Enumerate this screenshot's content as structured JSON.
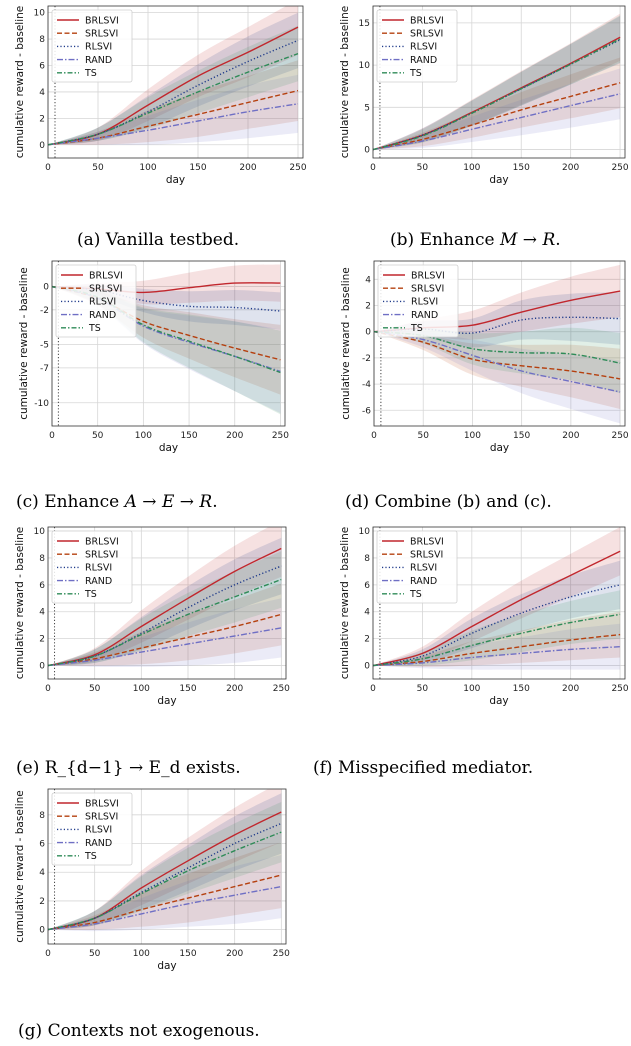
{
  "colors": {
    "BRLSVI": "#c1272d",
    "SRLSVI": "#b5400f",
    "RLSVI": "#1f3a8a",
    "RAND": "#6f6fc4",
    "TS": "#2e8b57"
  },
  "legend_series": [
    "BRLSVI",
    "SRLSVI",
    "RLSVI",
    "RAND",
    "TS"
  ],
  "chart_data": [
    {
      "type": "line",
      "caption": "(a) Vanilla testbed.",
      "xlabel": "day",
      "ylabel": "cumulative reward - baseline",
      "xlim": [
        0,
        255
      ],
      "ylim": [
        -1,
        10.5
      ],
      "xticks": [
        0,
        50,
        100,
        150,
        200,
        250
      ],
      "yticks": [
        0,
        2,
        4,
        6,
        8,
        10
      ],
      "grid": true,
      "legend": "top-left",
      "vline_x": 7,
      "x": [
        0,
        50,
        100,
        150,
        200,
        250
      ],
      "series": [
        {
          "name": "BRLSVI",
          "values": [
            0,
            0.8,
            3.0,
            5.2,
            7.0,
            8.9
          ],
          "band": [
            0,
            0.5,
            1.2,
            1.6,
            1.9,
            2.1
          ]
        },
        {
          "name": "SRLSVI",
          "values": [
            0,
            0.5,
            1.4,
            2.3,
            3.2,
            4.1
          ],
          "band": [
            0,
            0.5,
            1.2,
            1.7,
            2.0,
            2.3
          ]
        },
        {
          "name": "RLSVI",
          "values": [
            0,
            0.8,
            2.5,
            4.5,
            6.3,
            7.9
          ],
          "band": [
            0,
            0.5,
            1.2,
            1.6,
            1.9,
            2.1
          ]
        },
        {
          "name": "RAND",
          "values": [
            0,
            0.5,
            1.1,
            1.8,
            2.5,
            3.1
          ],
          "band": [
            0,
            0.5,
            1.1,
            1.6,
            2.0,
            2.2
          ]
        },
        {
          "name": "TS",
          "values": [
            0,
            0.8,
            2.4,
            4.0,
            5.5,
            6.9
          ],
          "band": [
            0,
            0.5,
            1.2,
            1.6,
            1.9,
            2.1
          ]
        }
      ]
    },
    {
      "type": "line",
      "caption": "(b) Enhance M → R.",
      "xlabel": "day",
      "ylabel": "cumulative reward - baseline",
      "xlim": [
        0,
        255
      ],
      "ylim": [
        -1,
        17
      ],
      "xticks": [
        0,
        50,
        100,
        150,
        200,
        250
      ],
      "yticks": [
        0,
        5,
        10,
        15
      ],
      "grid": true,
      "legend": "top-left",
      "vline_x": 7,
      "x": [
        0,
        50,
        100,
        150,
        200,
        250
      ],
      "series": [
        {
          "name": "BRLSVI",
          "values": [
            0,
            1.7,
            4.4,
            7.3,
            10.2,
            13.3
          ],
          "band": [
            0,
            0.8,
            1.5,
            2.0,
            2.4,
            2.8
          ]
        },
        {
          "name": "SRLSVI",
          "values": [
            0,
            1.2,
            2.9,
            4.7,
            6.3,
            7.9
          ],
          "band": [
            0,
            0.8,
            1.5,
            2.1,
            2.6,
            3.0
          ]
        },
        {
          "name": "RLSVI",
          "values": [
            0,
            1.7,
            4.3,
            7.2,
            10.1,
            13.0
          ],
          "band": [
            0,
            0.8,
            1.5,
            2.0,
            2.4,
            2.8
          ]
        },
        {
          "name": "RAND",
          "values": [
            0,
            1.0,
            2.4,
            3.8,
            5.2,
            6.6
          ],
          "band": [
            0,
            0.8,
            1.5,
            2.1,
            2.6,
            3.0
          ]
        },
        {
          "name": "TS",
          "values": [
            0,
            1.6,
            4.3,
            7.2,
            10.1,
            13.1
          ],
          "band": [
            0,
            0.8,
            1.5,
            2.0,
            2.4,
            2.8
          ]
        }
      ]
    },
    {
      "type": "line",
      "caption": "(c) Enhance A → E → R.",
      "xlabel": "day",
      "ylabel": "cumulative reward - baseline",
      "xlim": [
        0,
        255
      ],
      "ylim": [
        -12,
        2.2
      ],
      "xticks": [
        0,
        50,
        100,
        150,
        200,
        250
      ],
      "yticks": [
        0,
        -2,
        -5,
        -7,
        -10
      ],
      "grid": true,
      "legend": "top-left",
      "vline_x": 7,
      "x": [
        0,
        50,
        100,
        150,
        200,
        250
      ],
      "series": [
        {
          "name": "BRLSVI",
          "values": [
            0,
            -0.2,
            -0.5,
            -0.1,
            0.3,
            0.3
          ],
          "band": [
            0,
            0.5,
            1.0,
            1.3,
            1.5,
            1.6
          ]
        },
        {
          "name": "SRLSVI",
          "values": [
            0,
            -1.0,
            -3.0,
            -4.2,
            -5.3,
            -6.3
          ],
          "band": [
            0,
            0.6,
            1.4,
            2.0,
            2.5,
            3.0
          ]
        },
        {
          "name": "RLSVI",
          "values": [
            0,
            -0.3,
            -1.2,
            -1.7,
            -1.8,
            -2.1
          ],
          "band": [
            0,
            0.5,
            1.0,
            1.3,
            1.5,
            1.6
          ]
        },
        {
          "name": "RAND",
          "values": [
            0,
            -1.0,
            -3.4,
            -4.8,
            -6.0,
            -7.3
          ],
          "band": [
            0,
            0.6,
            1.5,
            2.3,
            3.0,
            3.6
          ]
        },
        {
          "name": "TS",
          "values": [
            0,
            -0.9,
            -3.3,
            -4.7,
            -6.0,
            -7.4
          ],
          "band": [
            0,
            0.6,
            1.5,
            2.3,
            3.0,
            3.6
          ]
        }
      ]
    },
    {
      "type": "line",
      "caption": "(d) Combine (b) and (c).",
      "xlabel": "day",
      "ylabel": "cumulative reward - baseline",
      "xlim": [
        0,
        255
      ],
      "ylim": [
        -7.2,
        5.4
      ],
      "xticks": [
        0,
        50,
        100,
        150,
        200,
        250
      ],
      "yticks": [
        4,
        2,
        0,
        -2,
        -4,
        -6
      ],
      "grid": true,
      "legend": "top-left",
      "vline_x": 7,
      "x": [
        0,
        50,
        100,
        150,
        200,
        250
      ],
      "series": [
        {
          "name": "BRLSVI",
          "values": [
            0,
            0.3,
            0.5,
            1.5,
            2.4,
            3.1
          ],
          "band": [
            0,
            0.6,
            1.1,
            1.5,
            1.8,
            2.0
          ]
        },
        {
          "name": "SRLSVI",
          "values": [
            0,
            -0.8,
            -2.1,
            -2.6,
            -3.0,
            -3.6
          ],
          "band": [
            0,
            0.6,
            1.2,
            1.6,
            2.0,
            2.3
          ]
        },
        {
          "name": "RLSVI",
          "values": [
            0,
            0.2,
            -0.1,
            0.9,
            1.1,
            1.0
          ],
          "band": [
            0,
            0.6,
            1.1,
            1.5,
            1.8,
            2.0
          ]
        },
        {
          "name": "RAND",
          "values": [
            0,
            -0.6,
            -1.8,
            -3.0,
            -3.8,
            -4.6
          ],
          "band": [
            0,
            0.6,
            1.2,
            1.7,
            2.1,
            2.4
          ]
        },
        {
          "name": "TS",
          "values": [
            0,
            -0.3,
            -1.3,
            -1.6,
            -1.7,
            -2.4
          ],
          "band": [
            0,
            0.6,
            1.2,
            1.6,
            2.0,
            2.3
          ]
        }
      ]
    },
    {
      "type": "line",
      "caption": "(e) R_{d−1} → E_d exists.",
      "xlabel": "day",
      "ylabel": "cumulative reward - baseline",
      "xlim": [
        0,
        255
      ],
      "ylim": [
        -1,
        10.3
      ],
      "xticks": [
        0,
        50,
        100,
        150,
        200,
        250
      ],
      "yticks": [
        0,
        2,
        4,
        6,
        8,
        10
      ],
      "grid": true,
      "legend": "top-left",
      "vline_x": 7,
      "x": [
        0,
        50,
        100,
        150,
        200,
        250
      ],
      "series": [
        {
          "name": "BRLSVI",
          "values": [
            0,
            0.8,
            2.9,
            5.0,
            7.0,
            8.7
          ],
          "band": [
            0,
            0.5,
            1.2,
            1.6,
            1.9,
            2.1
          ]
        },
        {
          "name": "SRLSVI",
          "values": [
            0,
            0.5,
            1.3,
            2.1,
            2.9,
            3.8
          ],
          "band": [
            0,
            0.5,
            1.2,
            1.7,
            2.0,
            2.3
          ]
        },
        {
          "name": "RLSVI",
          "values": [
            0,
            0.7,
            2.4,
            4.3,
            6.0,
            7.4
          ],
          "band": [
            0,
            0.5,
            1.2,
            1.6,
            1.9,
            2.1
          ]
        },
        {
          "name": "RAND",
          "values": [
            0,
            0.4,
            1.0,
            1.6,
            2.2,
            2.8
          ],
          "band": [
            0,
            0.5,
            1.1,
            1.6,
            2.0,
            2.2
          ]
        },
        {
          "name": "TS",
          "values": [
            0,
            0.7,
            2.3,
            3.8,
            5.1,
            6.4
          ],
          "band": [
            0,
            0.5,
            1.2,
            1.6,
            1.9,
            2.1
          ]
        }
      ]
    },
    {
      "type": "line",
      "caption": "(f) Misspecified mediator.",
      "xlabel": "day",
      "ylabel": "cumulative reward - baseline",
      "xlim": [
        0,
        255
      ],
      "ylim": [
        -1,
        10.3
      ],
      "xticks": [
        0,
        50,
        100,
        150,
        200,
        250
      ],
      "yticks": [
        0,
        2,
        4,
        6,
        8,
        10
      ],
      "grid": true,
      "legend": "top-left",
      "vline_x": 7,
      "x": [
        0,
        50,
        100,
        150,
        200,
        250
      ],
      "series": [
        {
          "name": "BRLSVI",
          "values": [
            0,
            0.9,
            2.9,
            4.9,
            6.7,
            8.5
          ],
          "band": [
            0,
            0.5,
            1.1,
            1.4,
            1.6,
            1.8
          ]
        },
        {
          "name": "SRLSVI",
          "values": [
            0,
            0.3,
            0.9,
            1.4,
            1.9,
            2.3
          ],
          "band": [
            0,
            0.4,
            0.9,
            1.2,
            1.5,
            1.7
          ]
        },
        {
          "name": "RLSVI",
          "values": [
            0,
            0.7,
            2.4,
            3.9,
            5.1,
            6.0
          ],
          "band": [
            0,
            0.5,
            1.1,
            1.4,
            1.6,
            1.8
          ]
        },
        {
          "name": "RAND",
          "values": [
            0,
            0.2,
            0.6,
            0.9,
            1.2,
            1.4
          ],
          "band": [
            0,
            0.4,
            0.9,
            1.2,
            1.5,
            1.7
          ]
        },
        {
          "name": "TS",
          "values": [
            0,
            0.5,
            1.5,
            2.4,
            3.2,
            3.8
          ],
          "band": [
            0,
            0.5,
            1.1,
            1.4,
            1.6,
            1.8
          ]
        }
      ]
    },
    {
      "type": "line",
      "caption": "(g) Contexts not exogenous.",
      "xlabel": "day",
      "ylabel": "cumulative reward - baseline",
      "xlim": [
        0,
        255
      ],
      "ylim": [
        -1,
        9.8
      ],
      "xticks": [
        0,
        50,
        100,
        150,
        200,
        250
      ],
      "yticks": [
        0,
        2,
        4,
        6,
        8
      ],
      "grid": true,
      "legend": "top-left",
      "vline_x": 7,
      "x": [
        0,
        50,
        100,
        150,
        200,
        250
      ],
      "series": [
        {
          "name": "BRLSVI",
          "values": [
            0,
            0.8,
            2.9,
            4.8,
            6.6,
            8.2
          ],
          "band": [
            0,
            0.5,
            1.2,
            1.6,
            1.9,
            2.1
          ]
        },
        {
          "name": "SRLSVI",
          "values": [
            0,
            0.5,
            1.4,
            2.2,
            3.0,
            3.8
          ],
          "band": [
            0,
            0.5,
            1.2,
            1.7,
            2.0,
            2.3
          ]
        },
        {
          "name": "RLSVI",
          "values": [
            0,
            0.8,
            2.6,
            4.3,
            6.0,
            7.4
          ],
          "band": [
            0,
            0.5,
            1.2,
            1.6,
            1.9,
            2.1
          ]
        },
        {
          "name": "RAND",
          "values": [
            0,
            0.4,
            1.1,
            1.8,
            2.4,
            3.0
          ],
          "band": [
            0,
            0.5,
            1.1,
            1.6,
            2.0,
            2.2
          ]
        },
        {
          "name": "TS",
          "values": [
            0,
            0.8,
            2.5,
            4.1,
            5.5,
            6.8
          ],
          "band": [
            0,
            0.5,
            1.2,
            1.6,
            1.9,
            2.1
          ]
        }
      ]
    }
  ]
}
